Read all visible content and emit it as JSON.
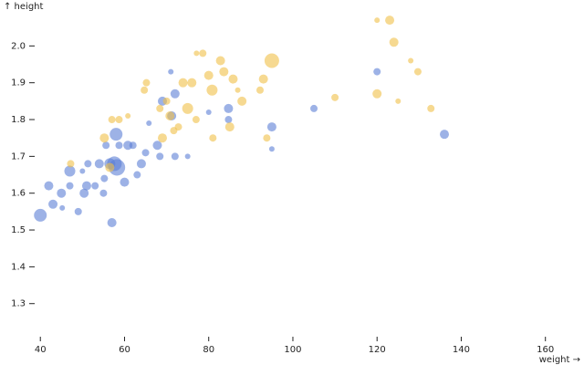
{
  "chart_data": {
    "type": "scatter",
    "x_label": "weight →",
    "y_label": "↑ height",
    "xlim": [
      38,
      167
    ],
    "xticks": [
      40,
      60,
      80,
      100,
      120,
      140,
      160
    ],
    "ylim": [
      1.22,
      2.1
    ],
    "yticks": [
      1.3,
      1.4,
      1.5,
      1.6,
      1.7,
      1.8,
      1.9,
      {
        "value": 2,
        "label": "2.0"
      }
    ],
    "grid": false,
    "series": [
      {
        "color": "#5b7fd6",
        "x": [
          40,
          42,
          43,
          45,
          45.2,
          47,
          47,
          49,
          50,
          50.4,
          51,
          51.3,
          53,
          54,
          55,
          55.2,
          55.6,
          56.5,
          57,
          57.6,
          58,
          58.2,
          58.7,
          60,
          60.8,
          62,
          63,
          64,
          65,
          65.8,
          67.8,
          68.4,
          69,
          71,
          71.2,
          72,
          72,
          75,
          80,
          84.7,
          84.7,
          95,
          95,
          105,
          120,
          136
        ],
        "values": [
          1.54,
          1.62,
          1.57,
          1.6,
          1.56,
          1.66,
          1.62,
          1.55,
          1.66,
          1.6,
          1.62,
          1.68,
          1.62,
          1.68,
          1.6,
          1.64,
          1.73,
          1.68,
          1.52,
          1.68,
          1.76,
          1.67,
          1.73,
          1.63,
          1.73,
          1.73,
          1.65,
          1.68,
          1.71,
          1.79,
          1.73,
          1.7,
          1.85,
          1.93,
          1.81,
          1.87,
          1.7,
          1.7,
          1.82,
          1.8,
          1.83,
          1.78,
          1.72,
          1.83,
          1.93,
          1.76
        ],
        "sizes": [
          7,
          5,
          5,
          5,
          3,
          6,
          4,
          4,
          3,
          5,
          5,
          4,
          4,
          5,
          4,
          4,
          4,
          6,
          5,
          8,
          7,
          9,
          4,
          5,
          5,
          4,
          4,
          5,
          4,
          3,
          5,
          4,
          5,
          3,
          5,
          5,
          4,
          3,
          3,
          4,
          5,
          5,
          3,
          4,
          4,
          5
        ]
      },
      {
        "color": "#f0c048",
        "x": [
          47.2,
          55.2,
          57,
          58.7,
          56.5,
          60.8,
          64.7,
          65.2,
          68.4,
          69,
          70,
          70.8,
          71.7,
          72.8,
          73.9,
          75,
          76,
          77.1,
          78.6,
          80,
          80.8,
          81,
          82.8,
          83.6,
          85.8,
          85,
          87.9,
          92.2,
          95,
          93,
          93.8,
          110,
          120,
          123,
          124,
          120,
          125,
          128,
          129.7,
          132.8,
          77,
          86.9
        ],
        "values": [
          1.68,
          1.75,
          1.8,
          1.8,
          1.67,
          1.81,
          1.88,
          1.9,
          1.83,
          1.75,
          1.85,
          1.81,
          1.77,
          1.78,
          1.9,
          1.83,
          1.9,
          1.98,
          1.98,
          1.92,
          1.88,
          1.75,
          1.96,
          1.93,
          1.91,
          1.78,
          1.85,
          1.88,
          1.96,
          1.91,
          1.75,
          1.86,
          2.07,
          2.07,
          2.01,
          1.87,
          1.85,
          1.96,
          1.93,
          1.83,
          1.8,
          1.88
        ],
        "sizes": [
          4,
          5,
          4,
          4,
          5,
          3,
          4,
          4,
          4,
          5,
          4,
          5,
          4,
          4,
          5,
          6,
          5,
          3,
          4,
          5,
          6,
          4,
          5,
          5,
          5,
          5,
          5,
          4,
          8,
          5,
          4,
          4,
          3,
          5,
          5,
          5,
          3,
          3,
          4,
          4,
          4,
          3
        ]
      }
    ]
  }
}
